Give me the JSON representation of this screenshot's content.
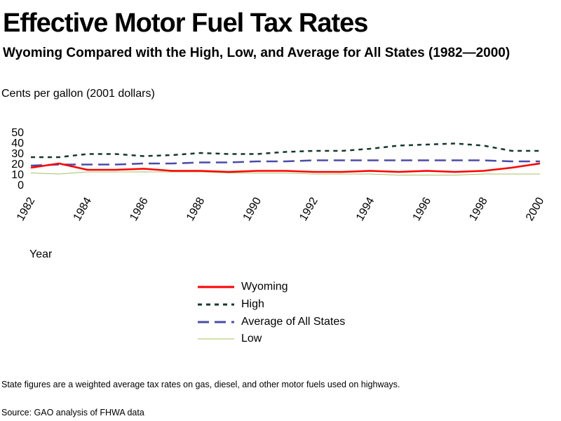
{
  "header": {
    "title": "Effective Motor Fuel Tax Rates",
    "subtitle": "Wyoming Compared with the High, Low, and Average for All States (1982—2000)",
    "unit_label": "Cents per gallon   (2001 dollars)"
  },
  "chart_data": {
    "type": "line",
    "title": "Effective Motor Fuel Tax Rates",
    "subtitle": "Wyoming Compared with the High, Low, and Average for All States (1982—2000)",
    "ylabel": "Cents per gallon   (2001 dollars)",
    "xlabel": "Year",
    "x": [
      1982,
      1983,
      1984,
      1985,
      1986,
      1987,
      1988,
      1989,
      1990,
      1991,
      1992,
      1993,
      1994,
      1995,
      1996,
      1997,
      1998,
      1999,
      2000
    ],
    "x_ticks": [
      "1982",
      "1984",
      "1986",
      "1988",
      "1990",
      "1992",
      "1994",
      "1996",
      "1998",
      "2000"
    ],
    "y_ticks": [
      0,
      10,
      20,
      30,
      40,
      50
    ],
    "ylim": [
      0,
      50
    ],
    "grid": false,
    "legend_position": "bottom",
    "series": [
      {
        "name": "Wyoming",
        "color": "#ff0000",
        "style": "solid",
        "values": [
          16,
          20,
          14,
          14,
          15,
          13,
          13,
          12,
          13,
          13,
          12,
          12,
          13,
          12,
          13,
          12,
          13,
          16,
          20
        ]
      },
      {
        "name": "High",
        "color": "#13392a",
        "style": "dotted",
        "values": [
          26,
          26,
          29,
          29,
          27,
          28,
          30,
          29,
          29,
          31,
          32,
          32,
          34,
          37,
          38,
          39,
          37,
          32,
          32
        ]
      },
      {
        "name": "Average of All States",
        "color": "#4b4ba8",
        "style": "dashed",
        "values": [
          18,
          19,
          19,
          19,
          20,
          20,
          21,
          21,
          22,
          22,
          23,
          23,
          23,
          23,
          23,
          23,
          23,
          22,
          22
        ]
      },
      {
        "name": "Low",
        "color": "#a8c060",
        "style": "thin",
        "values": [
          11,
          10,
          12,
          12,
          12,
          12,
          12,
          11,
          11,
          11,
          10,
          10,
          10,
          9,
          9,
          9,
          10,
          10,
          10
        ]
      }
    ]
  },
  "footer": {
    "note": "State figures are a weighted average tax rates on gas, diesel, and other motor fuels used on highways.",
    "source": "Source: GAO analysis of FHWA data"
  }
}
